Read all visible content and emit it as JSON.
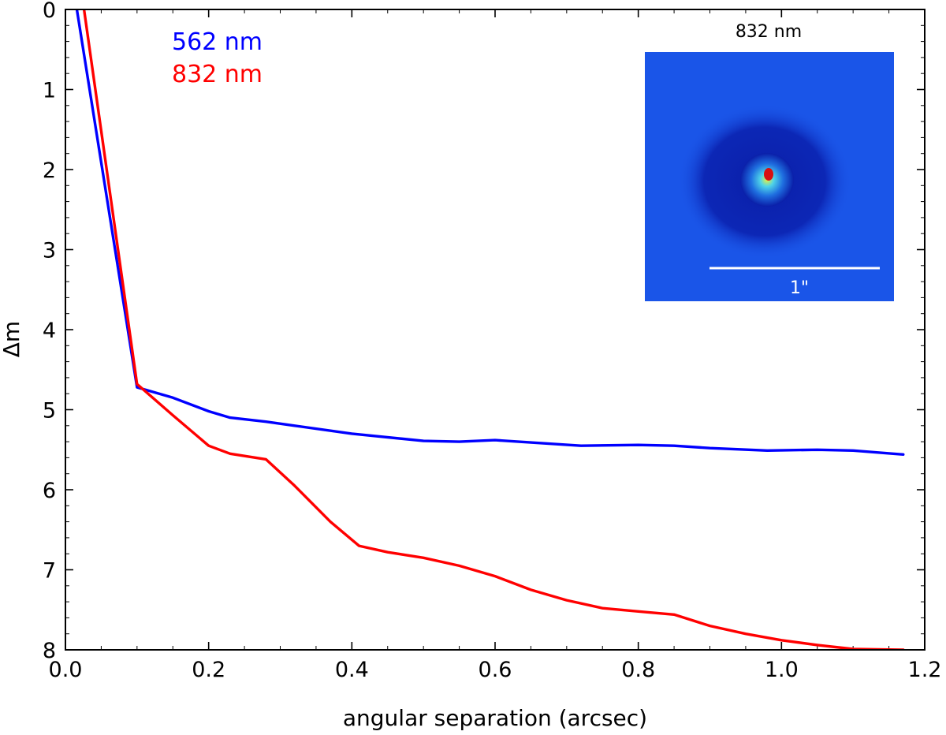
{
  "chart_data": {
    "type": "line",
    "xlabel": "angular separation (arcsec)",
    "ylabel": "Δm",
    "xlim": [
      0.0,
      1.2
    ],
    "ylim": [
      8,
      0
    ],
    "y_inverted": true,
    "x_ticks": [
      "0.0",
      "0.2",
      "0.4",
      "0.6",
      "0.8",
      "1.0",
      "1.2"
    ],
    "y_ticks": [
      "0",
      "1",
      "2",
      "3",
      "4",
      "5",
      "6",
      "7",
      "8"
    ],
    "grid": false,
    "legend_placement": "top-left",
    "series": [
      {
        "name": "562 nm",
        "color": "#0000ff",
        "x": [
          0.016,
          0.1,
          0.15,
          0.2,
          0.23,
          0.28,
          0.32,
          0.4,
          0.5,
          0.55,
          0.6,
          0.65,
          0.72,
          0.8,
          0.85,
          0.9,
          0.98,
          1.05,
          1.1,
          1.17
        ],
        "y": [
          0.0,
          4.72,
          4.85,
          5.02,
          5.1,
          5.15,
          5.2,
          5.3,
          5.39,
          5.4,
          5.38,
          5.41,
          5.45,
          5.44,
          5.45,
          5.48,
          5.51,
          5.5,
          5.51,
          5.56
        ]
      },
      {
        "name": "832 nm",
        "color": "#ff0000",
        "x": [
          0.026,
          0.1,
          0.15,
          0.2,
          0.23,
          0.28,
          0.32,
          0.37,
          0.41,
          0.45,
          0.5,
          0.55,
          0.6,
          0.65,
          0.7,
          0.75,
          0.8,
          0.85,
          0.9,
          0.95,
          1.0,
          1.05,
          1.1,
          1.17
        ],
        "y": [
          0.0,
          4.68,
          5.07,
          5.45,
          5.55,
          5.62,
          5.95,
          6.4,
          6.7,
          6.78,
          6.85,
          6.95,
          7.08,
          7.25,
          7.38,
          7.48,
          7.52,
          7.56,
          7.7,
          7.8,
          7.88,
          7.94,
          7.99,
          8.0
        ]
      }
    ],
    "inset": {
      "title": "832 nm",
      "scale_bar_label": "1\"",
      "colors": {
        "background": "#1a55e8",
        "dark": "#0a1ea8",
        "halo": "#45c9ec",
        "core": "#d81010"
      }
    }
  }
}
